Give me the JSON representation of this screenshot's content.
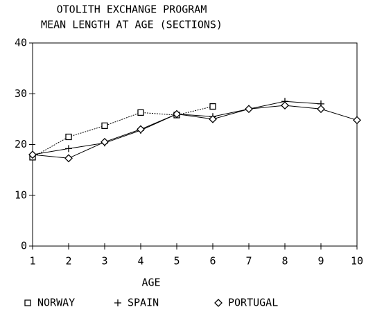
{
  "chart_data": {
    "type": "line",
    "title": "OTOLITH EXCHANGE PROGRAM",
    "subtitle": "MEAN LENGTH AT AGE (SECTIONS)",
    "x_label": "AGE",
    "x": [
      1,
      2,
      3,
      4,
      5,
      6,
      7,
      8,
      9,
      10
    ],
    "series": [
      {
        "name": "NORWAY",
        "color": "#000000",
        "marker": "square",
        "values": [
          17.5,
          21.5,
          23.7,
          26.3,
          25.8,
          27.5,
          null,
          null,
          null,
          null
        ]
      },
      {
        "name": "SPAIN",
        "color": "#000000",
        "marker": "plus",
        "values": [
          18,
          19.2,
          20.3,
          22.8,
          26,
          25.5,
          27,
          28.5,
          28,
          null
        ]
      },
      {
        "name": "PORTUGAL",
        "color": "#000000",
        "marker": "diamond",
        "values": [
          18,
          17.3,
          20.5,
          23,
          26,
          25,
          27,
          27.7,
          27,
          24.8
        ]
      }
    ],
    "xlim": [
      1,
      10
    ],
    "xticks": [
      1,
      2,
      3,
      4,
      5,
      6,
      7,
      8,
      9,
      10
    ],
    "ylim": [
      0,
      40
    ],
    "yticks": [
      0,
      10,
      20,
      30,
      40
    ],
    "legend": "bottom"
  }
}
